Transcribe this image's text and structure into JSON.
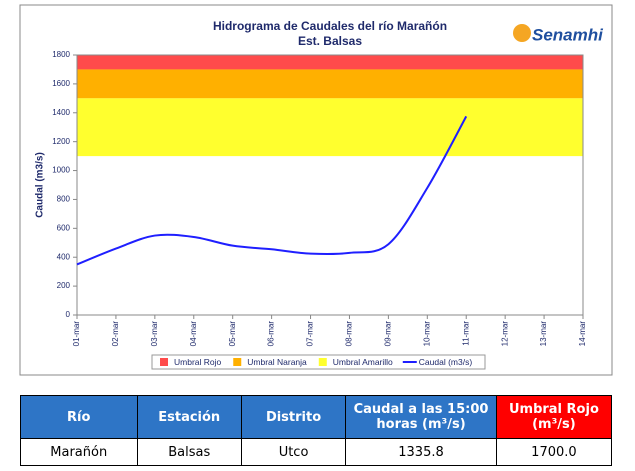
{
  "chart_data": {
    "type": "line",
    "title": "Hidrograma de Caudales del río Marañón",
    "subtitle": "Est. Balsas",
    "logo": "Senamhi",
    "ylabel": "Caudal (m3/s)",
    "categories": [
      "01-mar",
      "02-mar",
      "03-mar",
      "04-mar",
      "05-mar",
      "06-mar",
      "07-mar",
      "08-mar",
      "09-mar",
      "10-mar",
      "11-mar",
      "12-mar",
      "13-mar",
      "14-mar"
    ],
    "ylim": [
      0,
      1800
    ],
    "yticks": [
      0,
      200,
      400,
      600,
      800,
      1000,
      1200,
      1400,
      1600,
      1800
    ],
    "bands": [
      {
        "name": "Umbral Rojo",
        "color": "#ff4b4b",
        "from": 1700,
        "to": 1800
      },
      {
        "name": "Umbral Naranja",
        "color": "#ffb000",
        "from": 1500,
        "to": 1700
      },
      {
        "name": "Umbral Amarillo",
        "color": "#ffff2e",
        "from": 1100,
        "to": 1500
      }
    ],
    "series": [
      {
        "name": "Caudal (m3/s)",
        "color": "#1f1fff",
        "values": [
          350,
          460,
          550,
          540,
          480,
          455,
          425,
          430,
          490,
          880,
          1375,
          null,
          null,
          null
        ]
      }
    ]
  },
  "table": {
    "headers": [
      "Río",
      "Estación",
      "Distrito",
      "Caudal a las 15:00 horas (m³/s)",
      "Umbral Rojo (m³/s)"
    ],
    "rows": [
      [
        "Marañón",
        "Balsas",
        "Utco",
        "1335.8",
        "1700.0"
      ]
    ]
  }
}
